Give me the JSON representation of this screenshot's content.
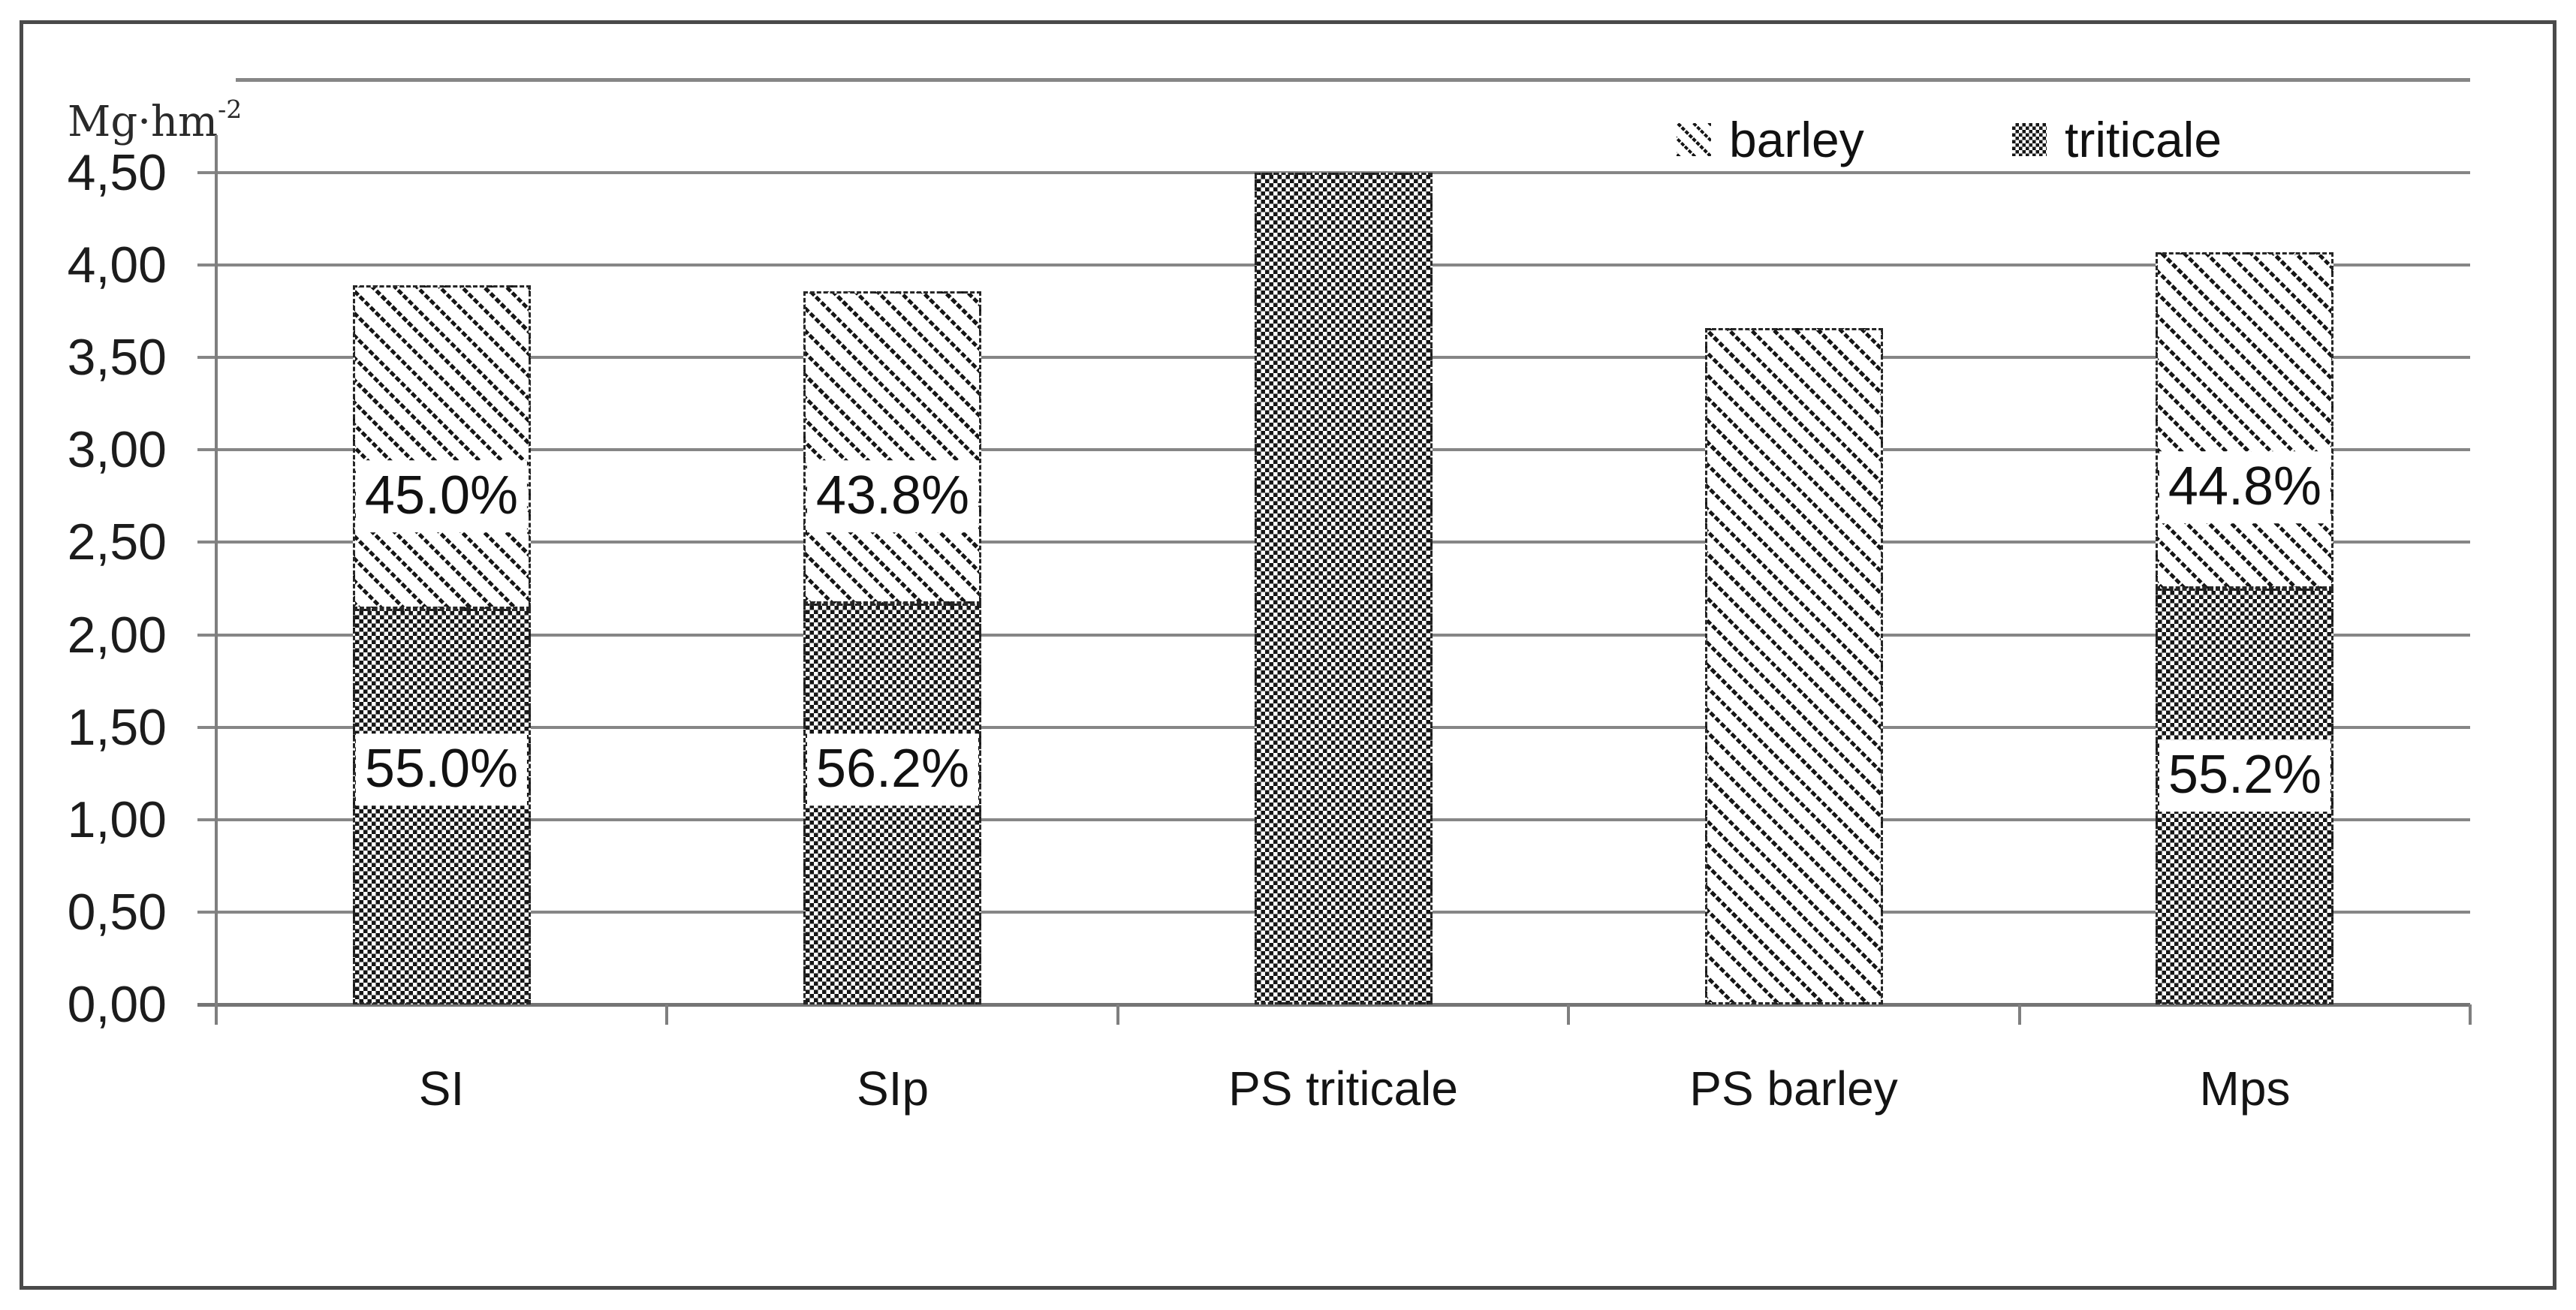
{
  "unit": {
    "base": "Mg·hm",
    "exponent": "-2"
  },
  "legend": {
    "items": [
      {
        "label": "barley",
        "pattern": "barley"
      },
      {
        "label": "triticale",
        "pattern": "triticale"
      }
    ]
  },
  "chart_data": {
    "type": "bar",
    "stacked": true,
    "title": "",
    "ylabel": "Mg·hm⁻²",
    "xlabel": "",
    "ylim": [
      0,
      4.5
    ],
    "ytick_step": 0.5,
    "ytick_labels": [
      "0,00",
      "0,50",
      "1,00",
      "1,50",
      "2,00",
      "2,50",
      "3,00",
      "3,50",
      "4,00",
      "4,50"
    ],
    "grid": true,
    "legend_position": "top-right-inside",
    "categories": [
      "SI",
      "SIp",
      "PS triticale",
      "PS barley",
      "Mps"
    ],
    "series": [
      {
        "name": "triticale",
        "pattern": "triticale",
        "values": [
          2.14,
          2.17,
          4.5,
          0,
          2.25
        ]
      },
      {
        "name": "barley",
        "pattern": "barley",
        "values": [
          1.75,
          1.69,
          0,
          3.66,
          1.82
        ]
      }
    ],
    "totals": [
      3.89,
      3.86,
      4.5,
      3.66,
      4.07
    ],
    "segment_labels": [
      {
        "cat": 0,
        "series": "barley",
        "text": "45.0%",
        "y_value": 2.75
      },
      {
        "cat": 0,
        "series": "triticale",
        "text": "55.0%",
        "y_value": 1.27
      },
      {
        "cat": 1,
        "series": "barley",
        "text": "43.8%",
        "y_value": 2.75
      },
      {
        "cat": 1,
        "series": "triticale",
        "text": "56.2%",
        "y_value": 1.27
      },
      {
        "cat": 4,
        "series": "barley",
        "text": "44.8%",
        "y_value": 2.8
      },
      {
        "cat": 4,
        "series": "triticale",
        "text": "55.2%",
        "y_value": 1.24
      }
    ]
  }
}
